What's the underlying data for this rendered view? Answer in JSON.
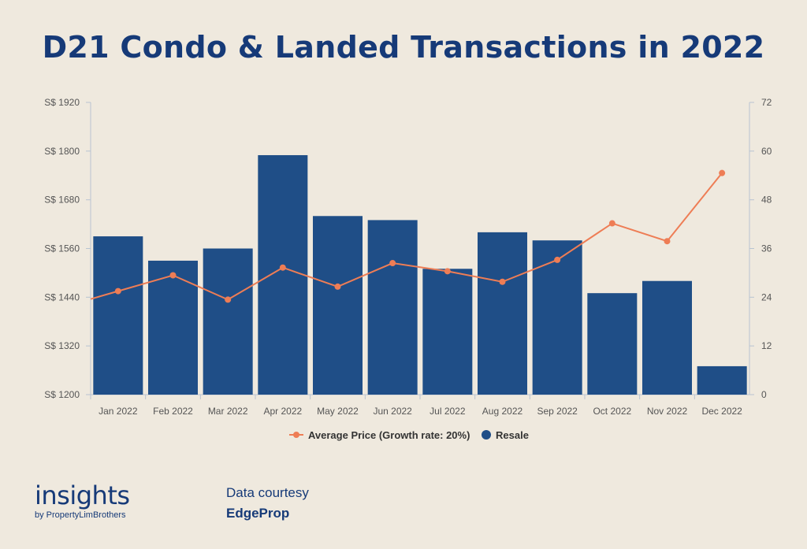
{
  "title": "D21 Condo & Landed Transactions in 2022",
  "brand": {
    "name": "insights",
    "sub": "by PropertyLimBrothers"
  },
  "credit": {
    "line1": "Data courtesy",
    "line2": "EdgeProp"
  },
  "colors": {
    "bar": "#1f4e87",
    "line": "#ee7d55",
    "title": "#163a78"
  },
  "chart_data": {
    "type": "bar",
    "categories": [
      "Jan 2022",
      "Feb 2022",
      "Mar 2022",
      "Apr 2022",
      "May 2022",
      "Jun 2022",
      "Jul 2022",
      "Aug 2022",
      "Sep 2022",
      "Oct 2022",
      "Nov 2022",
      "Dec 2022"
    ],
    "y_left": {
      "ticks": [
        "S$ 1200",
        "S$ 1320",
        "S$ 1440",
        "S$ 1560",
        "S$ 1680",
        "S$ 1800",
        "S$ 1920"
      ],
      "range": [
        1200,
        1920
      ]
    },
    "y_right": {
      "ticks": [
        "0",
        "12",
        "24",
        "36",
        "48",
        "60",
        "72"
      ],
      "range": [
        0,
        72
      ]
    },
    "series": [
      {
        "name": "Resale",
        "type": "bar",
        "axis": "right",
        "values": [
          39,
          33,
          36,
          59,
          44,
          43,
          31,
          40,
          38,
          25,
          28,
          7
        ]
      },
      {
        "name": "Average Price (Growth rate: 20%)",
        "type": "line",
        "axis": "left",
        "values": [
          1455,
          1494,
          1434,
          1513,
          1466,
          1524,
          1504,
          1478,
          1532,
          1622,
          1578,
          1746
        ]
      }
    ],
    "legend": "bottom-center",
    "grid": false
  }
}
